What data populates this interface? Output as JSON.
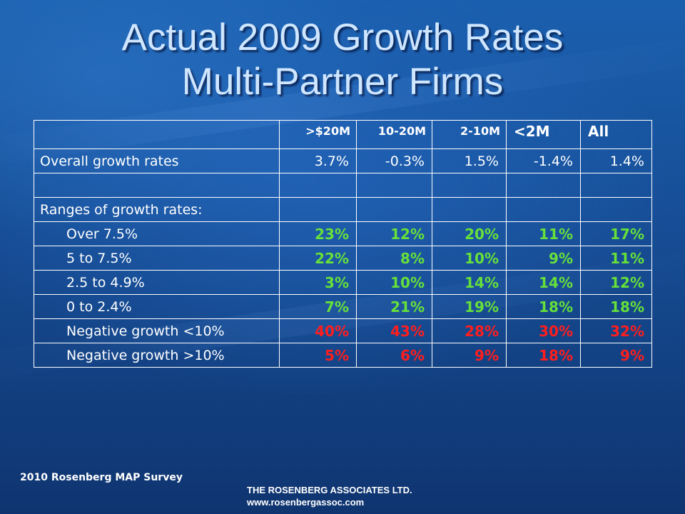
{
  "title": {
    "line1": "Actual 2009 Growth Rates",
    "line2": "Multi-Partner Firms"
  },
  "colors": {
    "positive_range": "#66e03a",
    "negative_range": "#ff1e1e",
    "title_text": "#cfe6ff",
    "background": "#174f98"
  },
  "table": {
    "columns": [
      ">$20M",
      "10-20M",
      "2-10M",
      "<2M",
      "All"
    ],
    "rows": [
      {
        "label": "Overall growth rates",
        "values": [
          "3.7%",
          "-0.3%",
          "1.5%",
          "-1.4%",
          "1.4%"
        ]
      },
      {
        "label": "",
        "values": [
          "",
          "",
          "",
          "",
          ""
        ]
      },
      {
        "label": "Ranges of growth rates:",
        "values": [
          "",
          "",
          "",
          "",
          ""
        ]
      },
      {
        "label": "Over 7.5%",
        "values": [
          "23%",
          "12%",
          "20%",
          "11%",
          "17%"
        ]
      },
      {
        "label": "5 to 7.5%",
        "values": [
          "22%",
          "8%",
          "10%",
          "9%",
          "11%"
        ]
      },
      {
        "label": "2.5 to 4.9%",
        "values": [
          "3%",
          "10%",
          "14%",
          "14%",
          "12%"
        ]
      },
      {
        "label": "0 to 2.4%",
        "values": [
          "7%",
          "21%",
          "19%",
          "18%",
          "18%"
        ]
      },
      {
        "label": "Negative growth <10%",
        "values": [
          "40%",
          "43%",
          "28%",
          "30%",
          "32%"
        ]
      },
      {
        "label": "Negative growth >10%",
        "values": [
          "5%",
          "6%",
          "9%",
          "18%",
          "9%"
        ]
      }
    ]
  },
  "footer": {
    "survey": "2010 Rosenberg MAP Survey",
    "company": "THE ROSENBERG ASSOCIATES LTD.",
    "website": "www.rosenbergassoc.com"
  }
}
